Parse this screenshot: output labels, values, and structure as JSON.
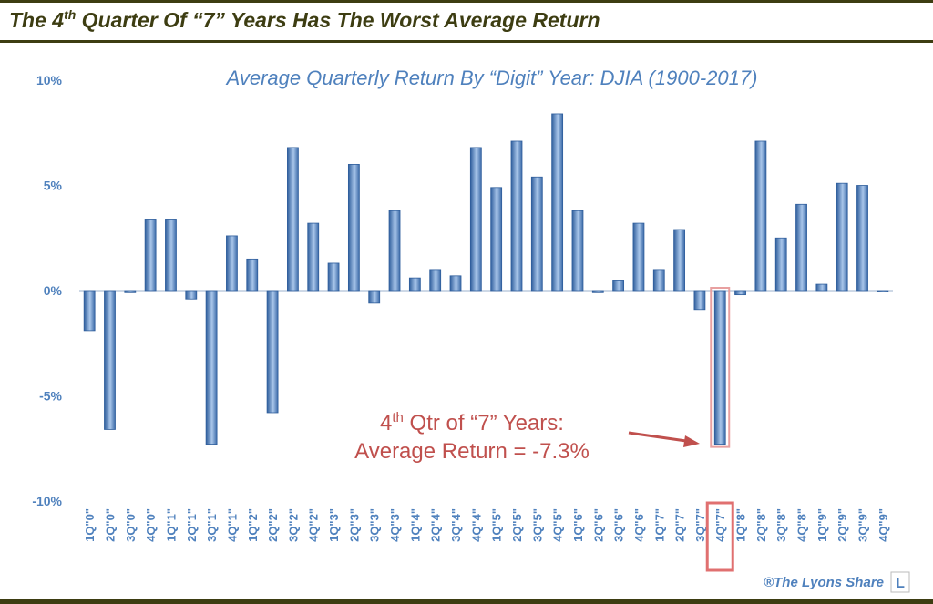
{
  "chart_data": {
    "type": "bar",
    "title": [
      "The 4",
      "th",
      " Quarter Of “7” Years Has The Worst Average Return"
    ],
    "subtitle": "Average Quarterly Return By “Digit” Year:  DJIA (1900-2017)",
    "categories": [
      "1Q\"0\"",
      "2Q\"0\"",
      "3Q\"0\"",
      "4Q\"0\"",
      "1Q\"1\"",
      "2Q\"1\"",
      "3Q\"1\"",
      "4Q\"1\"",
      "1Q\"2\"",
      "2Q\"2\"",
      "3Q\"2\"",
      "4Q\"2\"",
      "1Q\"3\"",
      "2Q\"3\"",
      "3Q\"3\"",
      "4Q\"3\"",
      "1Q\"4\"",
      "2Q\"4\"",
      "3Q\"4\"",
      "4Q\"4\"",
      "1Q\"5\"",
      "2Q\"5\"",
      "3Q\"5\"",
      "4Q\"5\"",
      "1Q\"6\"",
      "2Q\"6\"",
      "3Q\"6\"",
      "4Q\"6\"",
      "1Q\"7\"",
      "2Q\"7\"",
      "3Q\"7\"",
      "4Q\"7\"",
      "1Q\"8\"",
      "2Q\"8\"",
      "3Q\"8\"",
      "4Q\"8\"",
      "1Q\"9\"",
      "2Q\"9\"",
      "3Q\"9\"",
      "4Q\"9\""
    ],
    "values": [
      -1.9,
      -6.6,
      -0.1,
      3.4,
      3.4,
      -0.4,
      -7.3,
      2.6,
      1.5,
      -5.8,
      6.8,
      3.2,
      1.3,
      6.0,
      -0.6,
      3.8,
      0.6,
      1.0,
      0.7,
      6.8,
      4.9,
      7.1,
      5.4,
      8.4,
      3.8,
      -0.1,
      0.5,
      3.2,
      1.0,
      2.9,
      -0.9,
      -7.3,
      -0.2,
      7.1,
      2.5,
      4.1,
      0.3,
      5.1,
      5.0,
      -0.05
    ],
    "color": "#4f81bd",
    "ylim": [
      -10,
      10
    ],
    "yticks": [
      {
        "value": 10,
        "label": "10%"
      },
      {
        "value": 5,
        "label": "5%"
      },
      {
        "value": 0,
        "label": "0%"
      },
      {
        "value": -5,
        "label": "-5%"
      },
      {
        "value": -10,
        "label": "-10%"
      }
    ],
    "highlight_index": 31,
    "annotation": [
      [
        "4",
        "th",
        " Qtr of “7” Years:"
      ],
      "Average Return = -7.3%"
    ],
    "credit": [
      "®The Lyons Share",
      "L"
    ]
  }
}
